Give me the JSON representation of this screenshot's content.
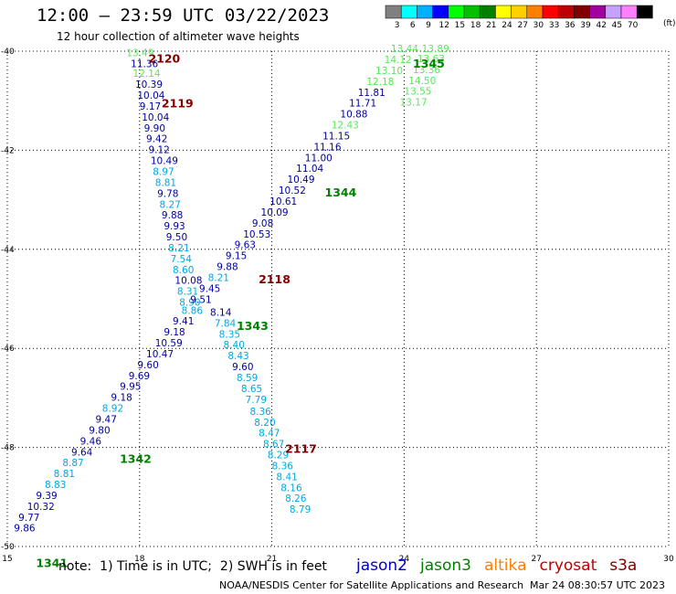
{
  "header": {
    "title": "12:00 – 23:59 UTC 03/22/2023",
    "subtitle": "12 hour collection of altimeter wave heights"
  },
  "color_scale": {
    "unit": "(ft)",
    "bins": [
      {
        "label": "3",
        "color": "#808080"
      },
      {
        "label": "6",
        "color": "#00ffff"
      },
      {
        "label": "9",
        "color": "#00b0ff"
      },
      {
        "label": "12",
        "color": "#0000ff"
      },
      {
        "label": "15",
        "color": "#00ff00"
      },
      {
        "label": "18",
        "color": "#00c000"
      },
      {
        "label": "21",
        "color": "#008000"
      },
      {
        "label": "24",
        "color": "#ffff00"
      },
      {
        "label": "27",
        "color": "#ffd000"
      },
      {
        "label": "30",
        "color": "#ff8000"
      },
      {
        "label": "33",
        "color": "#ff0000"
      },
      {
        "label": "36",
        "color": "#c00000"
      },
      {
        "label": "39",
        "color": "#800000"
      },
      {
        "label": "42",
        "color": "#a000a0"
      },
      {
        "label": "45",
        "color": "#c8a0ff"
      },
      {
        "label": "70",
        "color": "#ff80ff"
      },
      {
        "label": "",
        "color": "#000000"
      }
    ]
  },
  "map": {
    "lon_range": [
      15,
      30
    ],
    "lat_range": [
      -50,
      -40
    ],
    "x_ticks": [
      "15",
      "18",
      "21",
      "24",
      "27",
      "30"
    ],
    "y_ticks": [
      "-40",
      "-42",
      "-44",
      "-46",
      "-48",
      "-50"
    ],
    "grid": true
  },
  "colors": {
    "jason2": "#0000a0",
    "jason3": "#008000",
    "altika": "#ff8000",
    "cryosat": "#c00000",
    "s3a": "#800000",
    "cyan_lt": "#00a8e0",
    "green_lt": "#58e858",
    "pass_jason3": "#008000",
    "pass_s3a": "#800000"
  },
  "passes": [
    {
      "label": "2120",
      "lon": 18.2,
      "lat": -40.12,
      "color": "#800000"
    },
    {
      "label": "2119",
      "lon": 18.5,
      "lat": -41.02,
      "color": "#800000"
    },
    {
      "label": "2118",
      "lon": 20.7,
      "lat": -44.58,
      "color": "#800000"
    },
    {
      "label": "2117",
      "lon": 21.3,
      "lat": -48.0,
      "color": "#800000"
    },
    {
      "label": "1345",
      "lon": 24.2,
      "lat": -40.22,
      "color": "#008000"
    },
    {
      "label": "1344",
      "lon": 22.2,
      "lat": -42.82,
      "color": "#008000"
    },
    {
      "label": "1343",
      "lon": 20.2,
      "lat": -45.52,
      "color": "#008000"
    },
    {
      "label": "1342",
      "lon": 17.55,
      "lat": -48.2,
      "color": "#008000"
    },
    {
      "label": "1341",
      "lon": 15.65,
      "lat": -50.3,
      "color": "#008000"
    }
  ],
  "track_a": [
    [
      "13.49",
      17.7,
      -40.1,
      "green_lt"
    ],
    [
      "11.36",
      17.8,
      -40.32,
      "jason2"
    ],
    [
      "12.14",
      17.85,
      -40.52,
      "green_lt"
    ],
    [
      "10.39",
      17.9,
      -40.74,
      "jason2"
    ],
    [
      "10.04",
      17.95,
      -40.96,
      "jason2"
    ],
    [
      "9.17",
      18.0,
      -41.18,
      "jason2"
    ],
    [
      "10.04",
      18.05,
      -41.4,
      "jason2"
    ],
    [
      "9.90",
      18.1,
      -41.62,
      "jason2"
    ],
    [
      "9.42",
      18.15,
      -41.84,
      "jason2"
    ],
    [
      "9.12",
      18.2,
      -42.06,
      "jason2"
    ],
    [
      "10.49",
      18.25,
      -42.28,
      "jason2"
    ],
    [
      "8.97",
      18.3,
      -42.5,
      "cyan_lt"
    ],
    [
      "8.81",
      18.35,
      -42.72,
      "cyan_lt"
    ],
    [
      "9.78",
      18.4,
      -42.94,
      "jason2"
    ],
    [
      "8.27",
      18.45,
      -43.16,
      "cyan_lt"
    ],
    [
      "9.88",
      18.5,
      -43.38,
      "jason2"
    ],
    [
      "9.93",
      18.55,
      -43.6,
      "jason2"
    ],
    [
      "9.50",
      18.6,
      -43.82,
      "jason2"
    ],
    [
      "8.21",
      18.65,
      -44.04,
      "cyan_lt"
    ],
    [
      "7.54",
      18.7,
      -44.26,
      "cyan_lt"
    ],
    [
      "8.60",
      18.75,
      -44.48,
      "cyan_lt"
    ],
    [
      "10.08",
      18.8,
      -44.7,
      "jason2"
    ],
    [
      "8.31",
      18.85,
      -44.92,
      "cyan_lt"
    ],
    [
      "8.90",
      18.9,
      -45.14,
      "cyan_lt"
    ],
    [
      "8.14",
      19.6,
      -45.34,
      "jason2"
    ],
    [
      "7.84",
      19.7,
      -45.56,
      "cyan_lt"
    ],
    [
      "8.35",
      19.8,
      -45.78,
      "cyan_lt"
    ],
    [
      "8.40",
      19.9,
      -46.0,
      "cyan_lt"
    ],
    [
      "8.43",
      20.0,
      -46.22,
      "cyan_lt"
    ],
    [
      "9.60",
      20.1,
      -46.44,
      "jason2"
    ],
    [
      "8.59",
      20.2,
      -46.66,
      "cyan_lt"
    ],
    [
      "8.65",
      20.3,
      -46.88,
      "cyan_lt"
    ],
    [
      "7.79",
      20.4,
      -47.1,
      "cyan_lt"
    ],
    [
      "8.36",
      20.5,
      -47.34,
      "cyan_lt"
    ],
    [
      "8.20",
      20.6,
      -47.56,
      "cyan_lt"
    ],
    [
      "8.47",
      20.7,
      -47.78,
      "cyan_lt"
    ],
    [
      "8.67",
      20.8,
      -48.0,
      "cyan_lt"
    ],
    [
      "8.29",
      20.9,
      -48.22,
      "cyan_lt"
    ],
    [
      "8.36",
      21.0,
      -48.44,
      "cyan_lt"
    ],
    [
      "8.41",
      21.1,
      -48.66,
      "cyan_lt"
    ],
    [
      "8.16",
      21.2,
      -48.88,
      "cyan_lt"
    ],
    [
      "8.26",
      21.3,
      -49.1,
      "cyan_lt"
    ],
    [
      "8.79",
      21.4,
      -49.32,
      "cyan_lt"
    ]
  ],
  "track_b": [
    [
      "9.86",
      15.15,
      -49.7,
      "jason2"
    ],
    [
      "9.77",
      15.25,
      -49.48,
      "jason2"
    ],
    [
      "10.32",
      15.45,
      -49.26,
      "jason2"
    ],
    [
      "9.39",
      15.65,
      -49.04,
      "jason2"
    ],
    [
      "8.83",
      15.85,
      -48.82,
      "cyan_lt"
    ],
    [
      "8.81",
      16.05,
      -48.6,
      "cyan_lt"
    ],
    [
      "8.87",
      16.25,
      -48.38,
      "cyan_lt"
    ],
    [
      "9.64",
      16.45,
      -48.16,
      "jason2"
    ],
    [
      "9.46",
      16.65,
      -47.94,
      "jason2"
    ],
    [
      "9.80",
      16.85,
      -47.72,
      "jason2"
    ],
    [
      "9.47",
      17.0,
      -47.5,
      "jason2"
    ],
    [
      "8.92",
      17.15,
      -47.28,
      "cyan_lt"
    ],
    [
      "9.18",
      17.35,
      -47.06,
      "jason2"
    ],
    [
      "9.95",
      17.55,
      -46.84,
      "jason2"
    ],
    [
      "9.69",
      17.75,
      -46.62,
      "jason2"
    ],
    [
      "9.60",
      17.95,
      -46.4,
      "jason2"
    ],
    [
      "10.47",
      18.15,
      -46.18,
      "jason2"
    ],
    [
      "10.59",
      18.35,
      -45.96,
      "jason2"
    ],
    [
      "9.18",
      18.55,
      -45.74,
      "jason2"
    ],
    [
      "9.41",
      18.75,
      -45.52,
      "jason2"
    ],
    [
      "8.86",
      18.95,
      -45.3,
      "cyan_lt"
    ],
    [
      "9.51",
      19.15,
      -45.08,
      "jason2"
    ],
    [
      "9.45",
      19.35,
      -44.86,
      "jason2"
    ],
    [
      "8.21",
      19.55,
      -44.64,
      "cyan_lt"
    ],
    [
      "9.88",
      19.75,
      -44.42,
      "jason2"
    ],
    [
      "9.15",
      19.95,
      -44.2,
      "jason2"
    ],
    [
      "9.63",
      20.15,
      -43.98,
      "jason2"
    ],
    [
      "10.53",
      20.35,
      -43.76,
      "jason2"
    ],
    [
      "9.08",
      20.55,
      -43.54,
      "jason2"
    ],
    [
      "10.09",
      20.75,
      -43.32,
      "jason2"
    ],
    [
      "10.61",
      20.95,
      -43.1,
      "jason2"
    ],
    [
      "10.52",
      21.15,
      -42.88,
      "jason2"
    ],
    [
      "10.49",
      21.35,
      -42.66,
      "jason2"
    ],
    [
      "11.04",
      21.55,
      -42.44,
      "jason2"
    ],
    [
      "11.00",
      21.75,
      -42.22,
      "jason2"
    ],
    [
      "11.16",
      21.95,
      -42.0,
      "jason2"
    ],
    [
      "11.15",
      22.15,
      -41.78,
      "jason2"
    ],
    [
      "12.43",
      22.35,
      -41.56,
      "green_lt"
    ],
    [
      "10.88",
      22.55,
      -41.34,
      "jason2"
    ],
    [
      "11.71",
      22.75,
      -41.12,
      "jason2"
    ],
    [
      "11.81",
      22.95,
      -40.9,
      "jason2"
    ],
    [
      "12.18",
      23.15,
      -40.68,
      "green_lt"
    ],
    [
      "13.10",
      23.35,
      -40.46,
      "green_lt"
    ],
    [
      "14.12",
      23.55,
      -40.24,
      "green_lt"
    ],
    [
      "13.44",
      23.7,
      -40.02,
      "green_lt"
    ]
  ],
  "track_c": [
    [
      "13.17",
      23.9,
      -41.1,
      "green_lt"
    ],
    [
      "13.55",
      24.0,
      -40.88,
      "green_lt"
    ],
    [
      "14.50",
      24.1,
      -40.66,
      "green_lt"
    ],
    [
      "13.36",
      24.2,
      -40.44,
      "green_lt"
    ],
    [
      "13.63",
      24.3,
      -40.22,
      "green_lt"
    ],
    [
      "13.89",
      24.4,
      -40.02,
      "green_lt"
    ]
  ],
  "legend": [
    {
      "label": "jason2",
      "color": "#0000c0"
    },
    {
      "label": "jason3",
      "color": "#008000"
    },
    {
      "label": "altika",
      "color": "#ff8000"
    },
    {
      "label": "cryosat",
      "color": "#c00000"
    },
    {
      "label": "s3a",
      "color": "#800000"
    }
  ],
  "note": "note:  1) Time is in UTC;  2) SWH is in feet",
  "footer": "NOAA/NESDIS Center for Satellite Applications and Research",
  "footer_time": "Mar 24 08:30:57 UTC 2023"
}
